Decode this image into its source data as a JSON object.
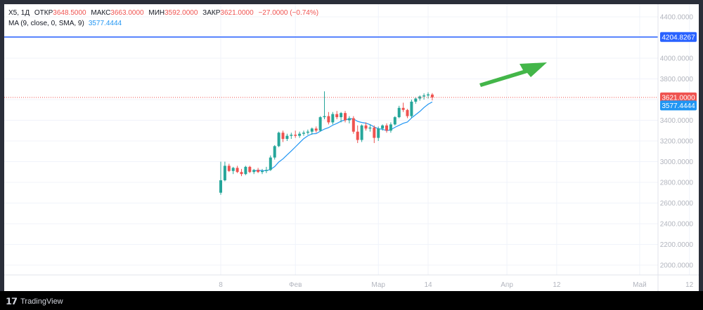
{
  "legend": {
    "ticker": "X5, 1Д",
    "open_label": "ОТКР",
    "open_value": "3648.5000",
    "high_label": "МАКС",
    "high_value": "3663.0000",
    "low_label": "МИН",
    "low_value": "3592.0000",
    "close_label": "ЗАКР",
    "close_value": "3621.0000",
    "change": "−27.0000 (−0.74%)",
    "ma_label": "MA (9, close, 0, SMA, 9)",
    "ma_value": "3577.4444"
  },
  "footer": {
    "brand": "TradingView",
    "logo_icon": "tradingview-logo-icon"
  },
  "colors": {
    "up": "#26a69a",
    "down": "#ef5350",
    "ma": "#2196f3",
    "hline": "#2962ff",
    "arrow": "#43b649"
  },
  "chart_data": {
    "type": "candlestick",
    "y_axis": {
      "min": 2000,
      "max": 4400,
      "ticks": [
        "4400.0000",
        "4200.0000",
        "4000.0000",
        "3800.0000",
        "3600.0000",
        "3400.0000",
        "3200.0000",
        "3000.0000",
        "2800.0000",
        "2600.0000",
        "2400.0000",
        "2200.0000",
        "2000.0000"
      ],
      "tick_values": [
        4400,
        4200,
        4000,
        3800,
        3600,
        3400,
        3200,
        3000,
        2800,
        2600,
        2400,
        2200,
        2000
      ]
    },
    "x_axis": {
      "labels": [
        {
          "label": "8",
          "bar": 0
        },
        {
          "label": "Фев",
          "bar": 18
        },
        {
          "label": "Мар",
          "bar": 38
        },
        {
          "label": "14",
          "bar": 50
        },
        {
          "label": "Апр",
          "bar": 69
        },
        {
          "label": "12",
          "bar": 81
        },
        {
          "label": "Май",
          "bar": 101
        },
        {
          "label": "12",
          "bar": 113
        }
      ]
    },
    "horizontal_line": {
      "value": 4204.8267,
      "label": "4204.8267"
    },
    "last_price": {
      "value": 3621.0,
      "label": "3621.0000"
    },
    "ma_last": {
      "value": 3577.4444,
      "label": "3577.4444"
    },
    "candles": [
      {
        "o": 2700,
        "h": 3000,
        "l": 2680,
        "c": 2820
      },
      {
        "o": 2820,
        "h": 3000,
        "l": 2810,
        "c": 2960
      },
      {
        "o": 2960,
        "h": 2980,
        "l": 2900,
        "c": 2910
      },
      {
        "o": 2910,
        "h": 2950,
        "l": 2880,
        "c": 2940
      },
      {
        "o": 2940,
        "h": 2960,
        "l": 2890,
        "c": 2900
      },
      {
        "o": 2900,
        "h": 2930,
        "l": 2860,
        "c": 2880
      },
      {
        "o": 2880,
        "h": 2960,
        "l": 2870,
        "c": 2950
      },
      {
        "o": 2950,
        "h": 2960,
        "l": 2890,
        "c": 2900
      },
      {
        "o": 2900,
        "h": 2930,
        "l": 2880,
        "c": 2920
      },
      {
        "o": 2920,
        "h": 2940,
        "l": 2890,
        "c": 2900
      },
      {
        "o": 2900,
        "h": 2930,
        "l": 2880,
        "c": 2910
      },
      {
        "o": 2910,
        "h": 2950,
        "l": 2890,
        "c": 2920
      },
      {
        "o": 2920,
        "h": 3060,
        "l": 2910,
        "c": 3040
      },
      {
        "o": 3040,
        "h": 3160,
        "l": 3020,
        "c": 3150
      },
      {
        "o": 3150,
        "h": 3290,
        "l": 3140,
        "c": 3280
      },
      {
        "o": 3280,
        "h": 3300,
        "l": 3190,
        "c": 3220
      },
      {
        "o": 3220,
        "h": 3270,
        "l": 3200,
        "c": 3250
      },
      {
        "o": 3250,
        "h": 3280,
        "l": 3220,
        "c": 3260
      },
      {
        "o": 3260,
        "h": 3300,
        "l": 3230,
        "c": 3250
      },
      {
        "o": 3250,
        "h": 3290,
        "l": 3230,
        "c": 3270
      },
      {
        "o": 3270,
        "h": 3300,
        "l": 3250,
        "c": 3280
      },
      {
        "o": 3280,
        "h": 3310,
        "l": 3260,
        "c": 3290
      },
      {
        "o": 3290,
        "h": 3330,
        "l": 3260,
        "c": 3320
      },
      {
        "o": 3320,
        "h": 3340,
        "l": 3280,
        "c": 3300
      },
      {
        "o": 3300,
        "h": 3440,
        "l": 3290,
        "c": 3430
      },
      {
        "o": 3430,
        "h": 3680,
        "l": 3410,
        "c": 3440
      },
      {
        "o": 3440,
        "h": 3480,
        "l": 3360,
        "c": 3380
      },
      {
        "o": 3380,
        "h": 3480,
        "l": 3360,
        "c": 3460
      },
      {
        "o": 3460,
        "h": 3490,
        "l": 3410,
        "c": 3430
      },
      {
        "o": 3430,
        "h": 3480,
        "l": 3380,
        "c": 3470
      },
      {
        "o": 3470,
        "h": 3490,
        "l": 3380,
        "c": 3400
      },
      {
        "o": 3400,
        "h": 3440,
        "l": 3370,
        "c": 3420
      },
      {
        "o": 3420,
        "h": 3440,
        "l": 3270,
        "c": 3290
      },
      {
        "o": 3290,
        "h": 3350,
        "l": 3180,
        "c": 3210
      },
      {
        "o": 3210,
        "h": 3360,
        "l": 3190,
        "c": 3350
      },
      {
        "o": 3350,
        "h": 3380,
        "l": 3300,
        "c": 3320
      },
      {
        "o": 3320,
        "h": 3360,
        "l": 3290,
        "c": 3330
      },
      {
        "o": 3330,
        "h": 3350,
        "l": 3180,
        "c": 3230
      },
      {
        "o": 3230,
        "h": 3340,
        "l": 3200,
        "c": 3320
      },
      {
        "o": 3320,
        "h": 3360,
        "l": 3300,
        "c": 3350
      },
      {
        "o": 3350,
        "h": 3370,
        "l": 3280,
        "c": 3300
      },
      {
        "o": 3300,
        "h": 3380,
        "l": 3280,
        "c": 3360
      },
      {
        "o": 3360,
        "h": 3440,
        "l": 3350,
        "c": 3430
      },
      {
        "o": 3430,
        "h": 3540,
        "l": 3420,
        "c": 3520
      },
      {
        "o": 3520,
        "h": 3570,
        "l": 3480,
        "c": 3500
      },
      {
        "o": 3500,
        "h": 3510,
        "l": 3420,
        "c": 3440
      },
      {
        "o": 3440,
        "h": 3600,
        "l": 3420,
        "c": 3580
      },
      {
        "o": 3580,
        "h": 3620,
        "l": 3560,
        "c": 3610
      },
      {
        "o": 3610,
        "h": 3640,
        "l": 3590,
        "c": 3630
      },
      {
        "o": 3630,
        "h": 3660,
        "l": 3600,
        "c": 3640
      },
      {
        "o": 3640,
        "h": 3670,
        "l": 3610,
        "c": 3650
      },
      {
        "o": 3648.5,
        "h": 3663,
        "l": 3592,
        "c": 3621
      }
    ]
  }
}
